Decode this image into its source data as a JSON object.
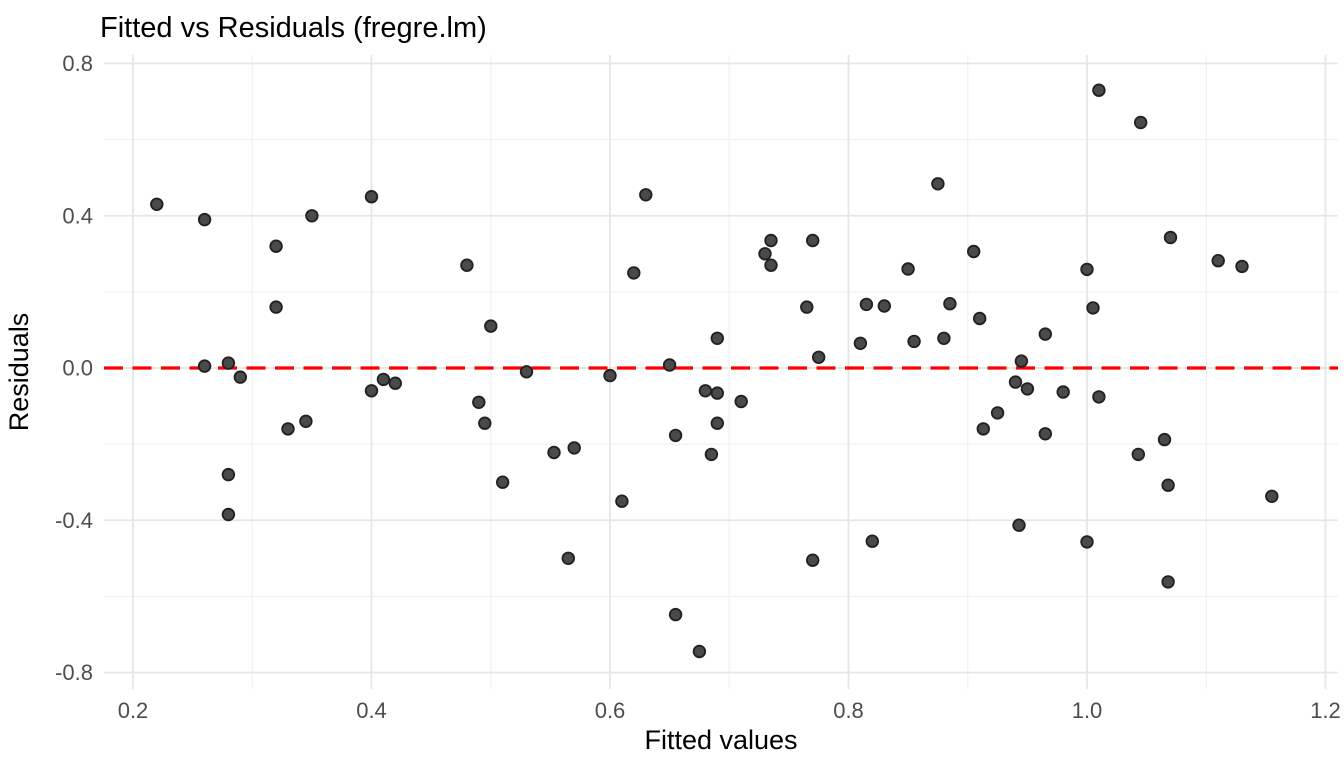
{
  "figure": {
    "title": "Fitted vs Residuals (fregre.lm)",
    "background_color": "#FFFFFF"
  },
  "chart_data": {
    "type": "scatter",
    "title": "Fitted vs Residuals (fregre.lm)",
    "xlabel": "Fitted values",
    "ylabel": "Residuals",
    "xlim": [
      0.2,
      1.2
    ],
    "ylim": [
      -0.8,
      0.8
    ],
    "x_ticks": [
      0.2,
      0.4,
      0.6,
      0.8,
      1.0,
      1.2
    ],
    "x_tick_labels": [
      "0.2",
      "0.4",
      "0.6",
      "0.8",
      "1.0",
      "1.2"
    ],
    "y_ticks": [
      0.8,
      0.4,
      0.0,
      -0.4,
      -0.8
    ],
    "y_tick_labels": [
      "0.8",
      "0.4",
      "0.0",
      "-0.4",
      "-0.8"
    ],
    "x_minor_gridlines": [
      0.3,
      0.5,
      0.7,
      0.9,
      1.1
    ],
    "y_minor_gridlines": [
      0.6,
      0.2,
      -0.2,
      -0.6
    ],
    "grid": "on",
    "legend_position": "none",
    "reference_line": {
      "y": 0,
      "style": "dashed",
      "color": "#FF0000"
    },
    "style": {
      "point_fill": "#4A4A4A",
      "point_stroke": "#212121",
      "grid_major_color": "#E6E6E6",
      "grid_minor_color": "#F0F0F0",
      "tick_label_color": "#4D4D4D"
    },
    "points": [
      [
        0.22,
        0.43
      ],
      [
        0.26,
        0.39
      ],
      [
        0.32,
        0.32
      ],
      [
        0.35,
        0.4
      ],
      [
        0.4,
        0.45
      ],
      [
        0.48,
        0.27
      ],
      [
        0.32,
        0.16
      ],
      [
        0.5,
        0.11
      ],
      [
        0.26,
        0.005
      ],
      [
        0.28,
        0.013
      ],
      [
        0.29,
        -0.024
      ],
      [
        0.41,
        -0.03
      ],
      [
        0.42,
        -0.04
      ],
      [
        0.4,
        -0.06
      ],
      [
        0.49,
        -0.09
      ],
      [
        0.495,
        -0.145
      ],
      [
        0.33,
        -0.16
      ],
      [
        0.345,
        -0.14
      ],
      [
        0.28,
        -0.28
      ],
      [
        0.28,
        -0.385
      ],
      [
        0.51,
        -0.3
      ],
      [
        0.53,
        -0.01
      ],
      [
        0.6,
        -0.02
      ],
      [
        0.63,
        0.455
      ],
      [
        0.62,
        0.25
      ],
      [
        0.65,
        0.008
      ],
      [
        0.69,
        0.078
      ],
      [
        0.735,
        0.335
      ],
      [
        0.73,
        0.3
      ],
      [
        0.735,
        0.27
      ],
      [
        0.77,
        0.335
      ],
      [
        0.765,
        0.16
      ],
      [
        0.775,
        0.028
      ],
      [
        0.815,
        0.167
      ],
      [
        0.83,
        0.163
      ],
      [
        0.81,
        0.065
      ],
      [
        0.85,
        0.26
      ],
      [
        0.855,
        0.07
      ],
      [
        0.68,
        -0.06
      ],
      [
        0.69,
        -0.066
      ],
      [
        0.71,
        -0.088
      ],
      [
        0.69,
        -0.145
      ],
      [
        0.655,
        -0.177
      ],
      [
        0.685,
        -0.227
      ],
      [
        0.553,
        -0.222
      ],
      [
        0.57,
        -0.21
      ],
      [
        0.61,
        -0.35
      ],
      [
        0.565,
        -0.5
      ],
      [
        0.77,
        -0.505
      ],
      [
        0.82,
        -0.455
      ],
      [
        0.655,
        -0.648
      ],
      [
        0.675,
        -0.745
      ],
      [
        1.01,
        0.73
      ],
      [
        1.045,
        0.645
      ],
      [
        0.875,
        0.484
      ],
      [
        1.07,
        0.343
      ],
      [
        0.905,
        0.306
      ],
      [
        1.11,
        0.282
      ],
      [
        1.13,
        0.267
      ],
      [
        1.0,
        0.259
      ],
      [
        1.005,
        0.158
      ],
      [
        0.885,
        0.169
      ],
      [
        0.91,
        0.13
      ],
      [
        0.965,
        0.089
      ],
      [
        0.88,
        0.078
      ],
      [
        0.945,
        0.018
      ],
      [
        0.94,
        -0.037
      ],
      [
        0.95,
        -0.055
      ],
      [
        0.98,
        -0.063
      ],
      [
        1.01,
        -0.076
      ],
      [
        0.925,
        -0.118
      ],
      [
        0.913,
        -0.16
      ],
      [
        0.965,
        -0.173
      ],
      [
        1.065,
        -0.188
      ],
      [
        1.043,
        -0.227
      ],
      [
        1.068,
        -0.308
      ],
      [
        1.155,
        -0.337
      ],
      [
        0.943,
        -0.413
      ],
      [
        1.0,
        -0.457
      ],
      [
        1.068,
        -0.562
      ]
    ]
  }
}
